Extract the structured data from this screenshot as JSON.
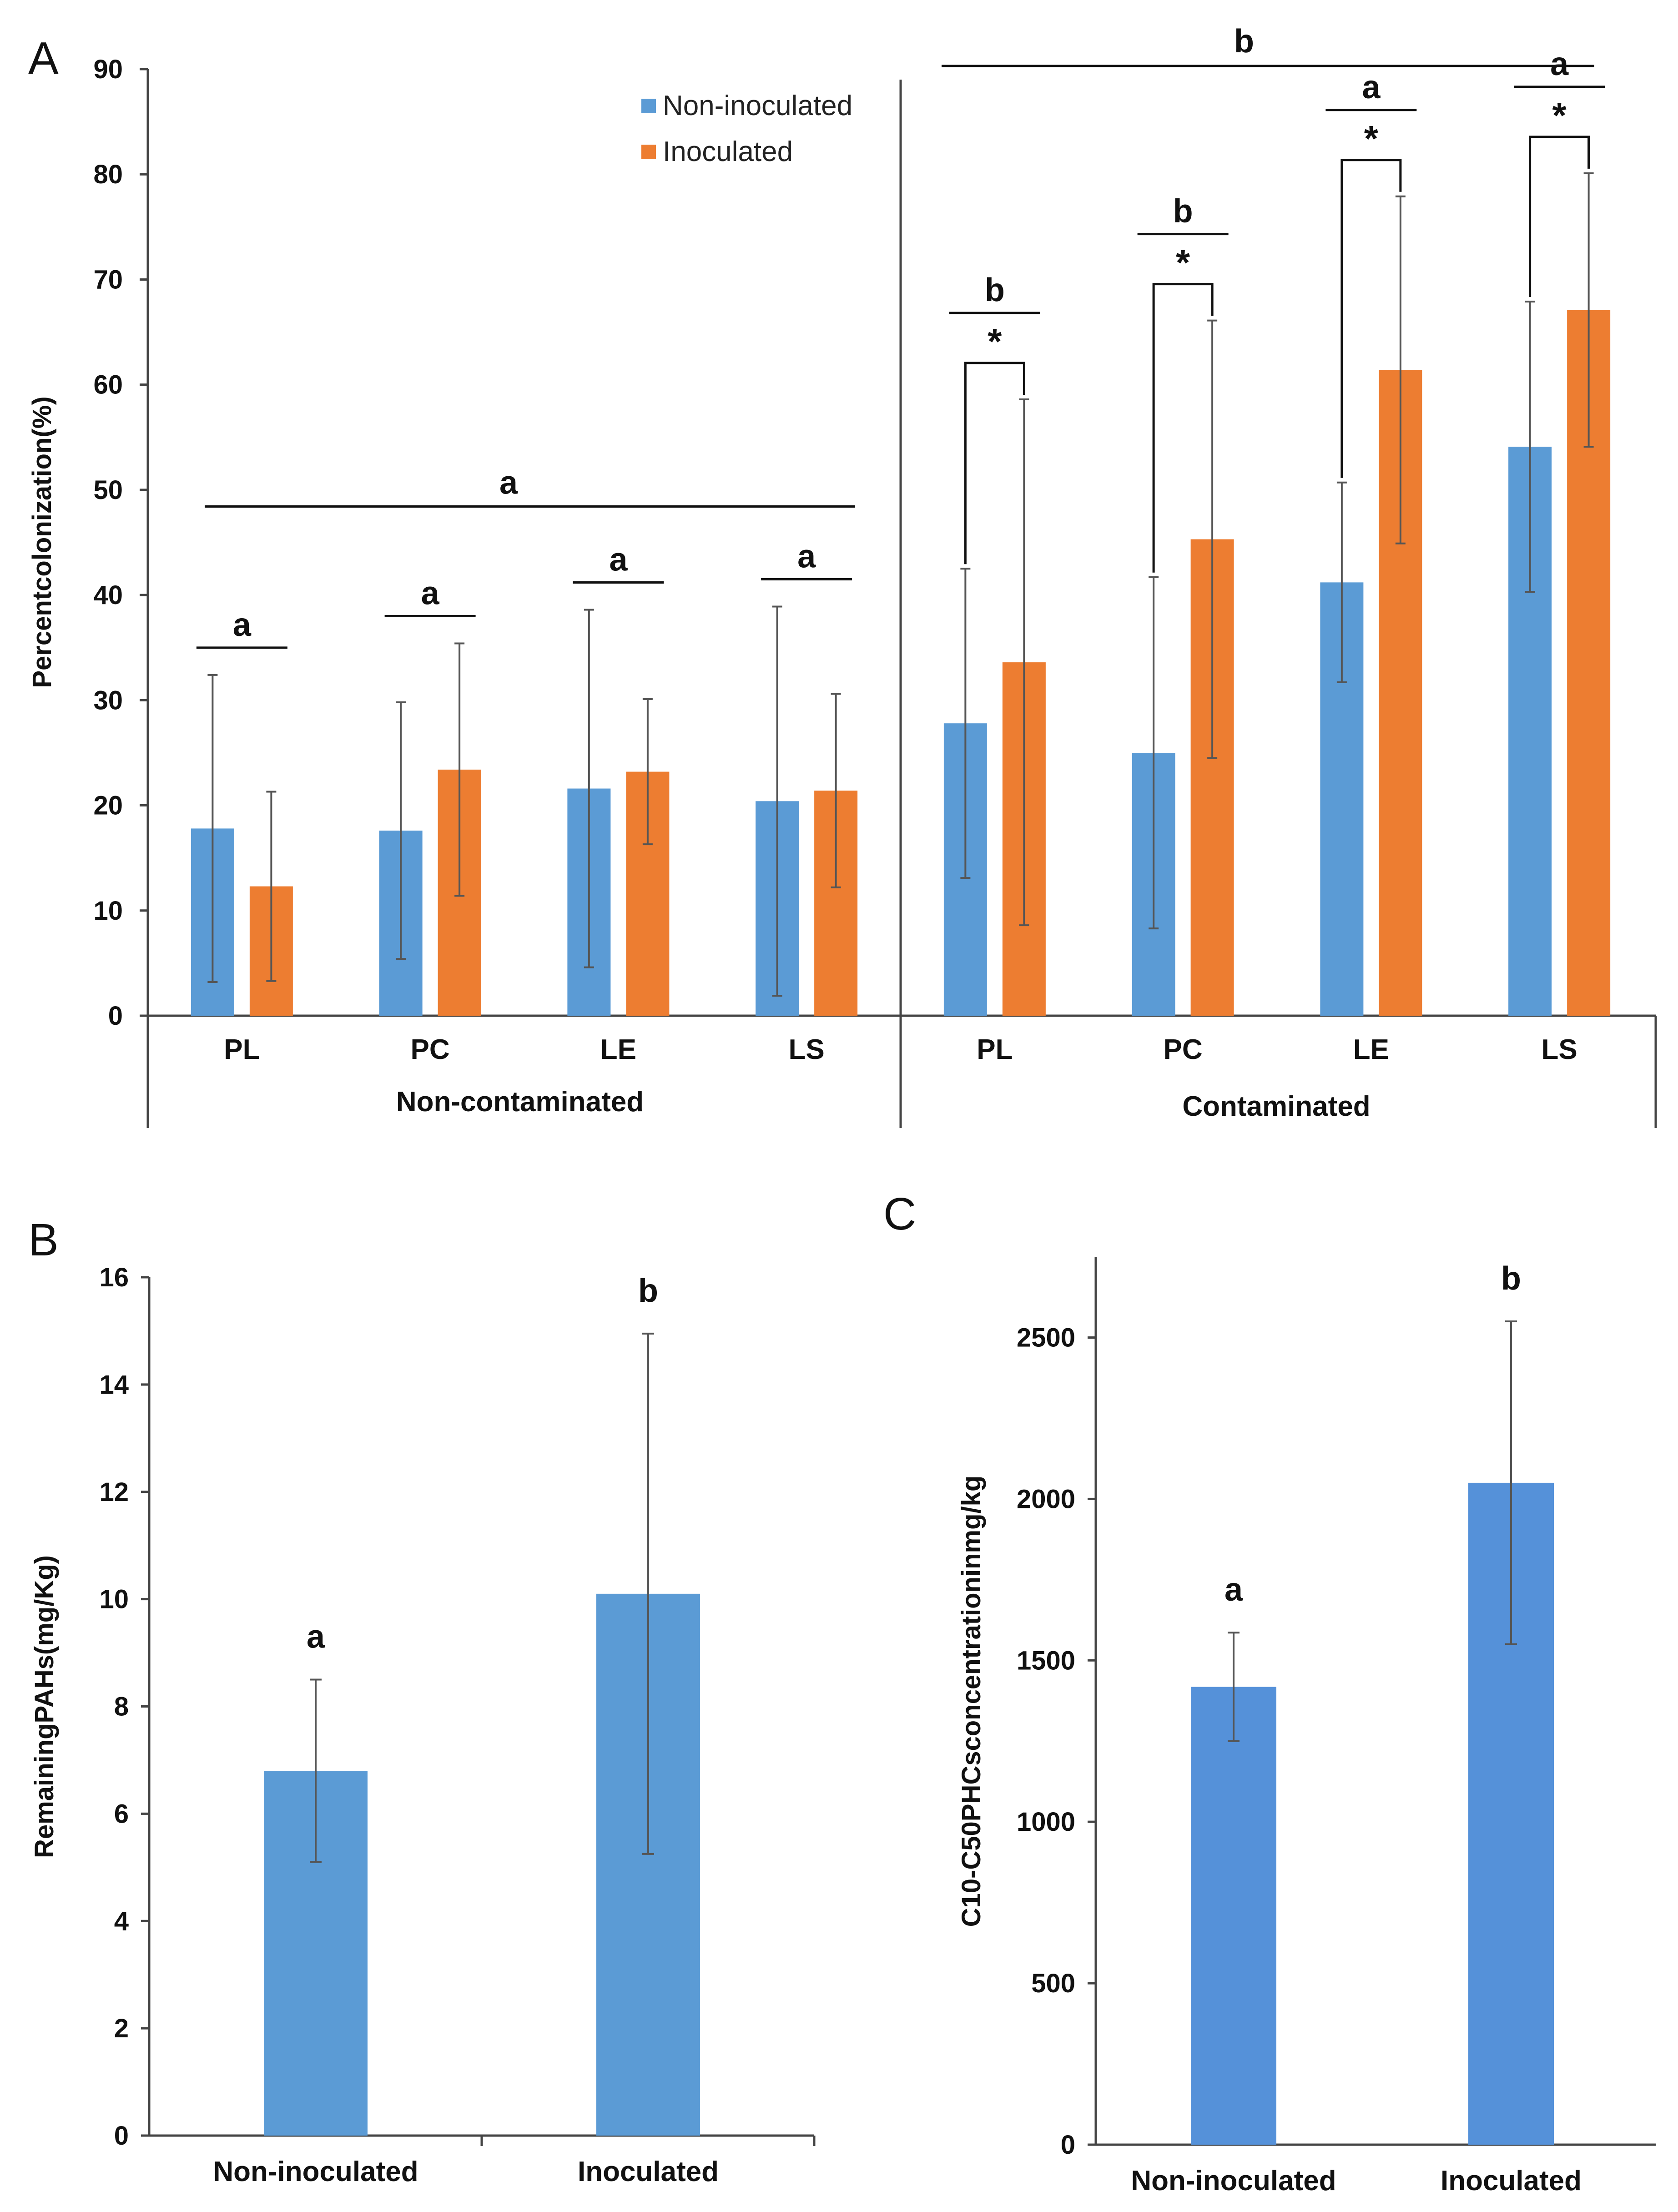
{
  "colors": {
    "non_inoculated": "#5b9bd5",
    "inoculated": "#ed7d31",
    "panel_c_bar": "#5591d9",
    "axis": "#444444",
    "errbar": "#555555",
    "text": "#111111"
  },
  "chart_data": [
    {
      "panel": "A",
      "type": "bar",
      "ylabel": "Percentcolonization(%)",
      "ylim": [
        0,
        90
      ],
      "yticks": [
        "0",
        "10",
        "20",
        "30",
        "40",
        "50",
        "60",
        "70",
        "80",
        "90"
      ],
      "legend": [
        "Non-inoculated",
        "Inoculated"
      ],
      "groups": [
        {
          "name": "Non-contaminated",
          "overall_letter": "a",
          "categories": [
            {
              "label": "PL",
              "non": 17.8,
              "non_err": 14.6,
              "ino": 12.3,
              "ino_err": 9.0,
              "letter": "a",
              "star": false
            },
            {
              "label": "PC",
              "non": 17.6,
              "non_err": 12.2,
              "ino": 23.4,
              "ino_err": 12.0,
              "letter": "a",
              "star": false
            },
            {
              "label": "LE",
              "non": 21.6,
              "non_err": 17.0,
              "ino": 23.2,
              "ino_err": 6.9,
              "letter": "a",
              "star": false
            },
            {
              "label": "LS",
              "non": 20.4,
              "non_err": 18.5,
              "ino": 21.4,
              "ino_err": 9.2,
              "letter": "a",
              "star": false
            }
          ]
        },
        {
          "name": "Contaminated",
          "overall_letter": "b",
          "categories": [
            {
              "label": "PL",
              "non": 27.8,
              "non_err": 14.7,
              "ino": 33.6,
              "ino_err": 25.0,
              "letter": "b",
              "star": true,
              "star_label": "*"
            },
            {
              "label": "PC",
              "non": 25.0,
              "non_err": 16.7,
              "ino": 45.3,
              "ino_err": 20.8,
              "letter": "b",
              "star": true,
              "star_label": "*"
            },
            {
              "label": "LE",
              "non": 41.2,
              "non_err": 9.5,
              "ino": 61.4,
              "ino_err": 16.5,
              "letter": "a",
              "star": true,
              "star_label": "*"
            },
            {
              "label": "LS",
              "non": 54.1,
              "non_err": 13.8,
              "ino": 67.1,
              "ino_err": 13.0,
              "letter": "a",
              "star": true,
              "star_label": "*"
            }
          ]
        }
      ]
    },
    {
      "panel": "B",
      "type": "bar",
      "ylabel": "RemainingPAHs(mg/Kg)",
      "ylim": [
        0,
        16
      ],
      "yticks": [
        "0",
        "2",
        "4",
        "6",
        "8",
        "10",
        "12",
        "14",
        "16"
      ],
      "categories": [
        "Non-inoculated",
        "Inoculated"
      ],
      "values": [
        6.8,
        10.1
      ],
      "errors": [
        1.7,
        4.85
      ],
      "letters": [
        "a",
        "b"
      ]
    },
    {
      "panel": "C",
      "type": "bar",
      "ylabel": "C10-C50PHCsconcentrationinmg/kg",
      "ylim": [
        0,
        2750
      ],
      "yticks": [
        "0",
        "500",
        "1000",
        "1500",
        "2000",
        "2500"
      ],
      "categories": [
        "Non-inoculated",
        "Inoculated"
      ],
      "values": [
        1418,
        2050
      ],
      "errors": [
        168,
        500
      ],
      "letters": [
        "a",
        "b"
      ]
    }
  ]
}
